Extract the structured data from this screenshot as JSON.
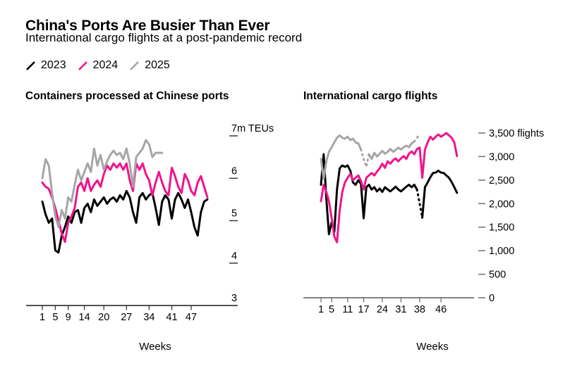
{
  "header": {
    "title": "China's Ports Are Busier Than Ever",
    "subtitle": "International cargo flights at a post-pandemic record",
    "legend": [
      {
        "label": "2023",
        "color": "#000000"
      },
      {
        "label": "2024",
        "color": "#f0148c"
      },
      {
        "label": "2025",
        "color": "#a6a6a6"
      }
    ]
  },
  "chart_data": [
    {
      "type": "line",
      "title": "Containers processed at Chinese ports",
      "xlabel": "Weeks",
      "ylabel": "m TEUs",
      "ylim": [
        3,
        7
      ],
      "x_ticks": [
        1,
        5,
        9,
        14,
        20,
        27,
        34,
        41,
        47
      ],
      "y_ticks": [
        {
          "value": 7,
          "label": "7m TEUs",
          "dash": true
        },
        {
          "value": 6,
          "label": "6",
          "dash": true
        },
        {
          "value": 5,
          "label": "5",
          "dash": true
        },
        {
          "value": 4,
          "label": "4",
          "dash": true
        },
        {
          "value": 3,
          "label": "3",
          "dash": false
        }
      ],
      "series": [
        {
          "name": "2023",
          "color": "#000000",
          "start_week": 1,
          "values": [
            5.45,
            5.15,
            4.95,
            5.05,
            4.3,
            4.25,
            4.65,
            4.85,
            5.1,
            4.95,
            5.2,
            5.25,
            4.95,
            5.3,
            5.4,
            5.2,
            5.5,
            5.35,
            5.45,
            5.55,
            5.4,
            5.5,
            5.55,
            5.45,
            5.6,
            5.5,
            5.7,
            5.55,
            5.2,
            4.95,
            5.55,
            5.65,
            5.5,
            5.6,
            5.65,
            5.3,
            4.9,
            5.45,
            5.6,
            5.5,
            5.05,
            5.5,
            5.65,
            5.5,
            5.3,
            5.5,
            5.2,
            4.85,
            4.65,
            5.2,
            5.45,
            5.5
          ]
        },
        {
          "name": "2024",
          "color": "#f0148c",
          "start_week": 1,
          "values": [
            5.9,
            5.8,
            5.75,
            5.55,
            5.3,
            5.0,
            4.7,
            4.5,
            4.95,
            5.1,
            5.3,
            5.8,
            5.9,
            5.7,
            6.0,
            5.7,
            5.85,
            5.95,
            5.8,
            6.1,
            6.3,
            6.2,
            6.35,
            6.25,
            6.35,
            6.2,
            6.35,
            5.95,
            5.7,
            6.35,
            6.2,
            6.35,
            6.1,
            5.95,
            5.6,
            5.9,
            6.15,
            5.9,
            5.7,
            5.6,
            6.25,
            6.05,
            5.8,
            5.65,
            6.1,
            5.95,
            5.7,
            5.6,
            5.9,
            6.05,
            5.8,
            5.55
          ]
        },
        {
          "name": "2025",
          "color": "#a6a6a6",
          "start_week": 1,
          "values": [
            6.0,
            6.45,
            6.3,
            5.65,
            5.1,
            4.85,
            5.25,
            5.05,
            5.55,
            5.45,
            5.85,
            6.2,
            5.95,
            6.15,
            6.35,
            6.15,
            6.7,
            6.3,
            6.55,
            6.2,
            6.4,
            6.55,
            6.65,
            6.55,
            6.6,
            6.45,
            6.7,
            6.35,
            5.8,
            6.5,
            6.6,
            6.7,
            6.9,
            6.8,
            6.5,
            6.6,
            6.6,
            6.6
          ]
        }
      ]
    },
    {
      "type": "line",
      "title": "International cargo flights",
      "xlabel": "Weeks",
      "ylabel": "flights",
      "ylim": [
        0,
        3500
      ],
      "x_ticks": [
        1,
        5,
        11,
        17,
        24,
        31,
        38,
        46
      ],
      "y_ticks": [
        {
          "value": 3500,
          "label": "3,500 flights",
          "dash": true
        },
        {
          "value": 3000,
          "label": "3,000",
          "dash": true
        },
        {
          "value": 2500,
          "label": "2,500",
          "dash": true
        },
        {
          "value": 2000,
          "label": "2,000",
          "dash": true
        },
        {
          "value": 1500,
          "label": "1,500",
          "dash": true
        },
        {
          "value": 1000,
          "label": "1,000",
          "dash": true
        },
        {
          "value": 500,
          "label": "500",
          "dash": true
        },
        {
          "value": 0,
          "label": "0",
          "dash": true
        }
      ],
      "series": [
        {
          "name": "2023",
          "color": "#000000",
          "start_week": 1,
          "dash_ranges": [
            [
              37,
              39
            ]
          ],
          "values": [
            2400,
            3050,
            2100,
            1350,
            1600,
            1400,
            2300,
            2750,
            2810,
            2780,
            2810,
            2700,
            2450,
            2400,
            2500,
            2420,
            1690,
            2350,
            2400,
            2300,
            2350,
            2260,
            2320,
            2250,
            2350,
            2300,
            2260,
            2310,
            2360,
            2300,
            2260,
            2310,
            2360,
            2400,
            2350,
            2400,
            2300,
            2000,
            1700,
            2350,
            2450,
            2560,
            2650,
            2660,
            2700,
            2660,
            2650,
            2600,
            2550,
            2460,
            2350,
            2230
          ]
        },
        {
          "name": "2024",
          "color": "#f0148c",
          "start_week": 1,
          "values": [
            2050,
            2400,
            2250,
            2050,
            1700,
            1300,
            1180,
            1850,
            2250,
            2450,
            2550,
            2630,
            2500,
            2550,
            2600,
            2480,
            2300,
            2550,
            2600,
            2650,
            2600,
            2680,
            2750,
            2850,
            2760,
            2900,
            2850,
            2920,
            2960,
            2900,
            2960,
            3010,
            2950,
            3060,
            3110,
            3050,
            3160,
            3190,
            2550,
            3150,
            3300,
            3420,
            3360,
            3420,
            3470,
            3420,
            3460,
            3500,
            3450,
            3400,
            3300,
            3010
          ]
        },
        {
          "name": "2025",
          "color": "#a6a6a6",
          "start_week": 1,
          "dash_ranges": [
            [
              16,
              19
            ],
            [
              36,
              38
            ]
          ],
          "values": [
            2950,
            2530,
            2900,
            3100,
            3200,
            3300,
            3400,
            3450,
            3400,
            3380,
            3420,
            3350,
            3380,
            3300,
            3280,
            3150,
            2950,
            2780,
            3050,
            2950,
            3080,
            3000,
            3060,
            3120,
            3060,
            3100,
            3160,
            3100,
            3140,
            3190,
            3150,
            3200,
            3230,
            3200,
            3280,
            3320,
            3400,
            3460
          ]
        }
      ]
    }
  ]
}
